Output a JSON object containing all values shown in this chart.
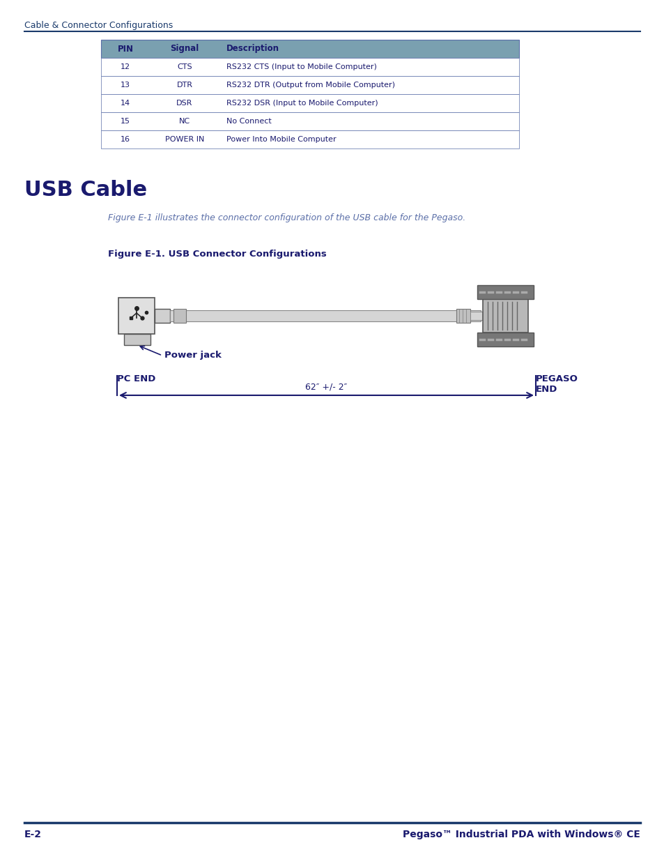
{
  "page_header": "Cable & Connector Configurations",
  "header_color": "#1a3a6b",
  "table_header_bg": "#7aa0b0",
  "table_header_text_color": "#1a1a6e",
  "table_text_color": "#1a1a6e",
  "table_cols": [
    "PIN",
    "Signal",
    "Description"
  ],
  "table_rows": [
    [
      "12",
      "CTS",
      "RS232 CTS (Input to Mobile Computer)"
    ],
    [
      "13",
      "DTR",
      "RS232 DTR (Output from Mobile Computer)"
    ],
    [
      "14",
      "DSR",
      "RS232 DSR (Input to Mobile Computer)"
    ],
    [
      "15",
      "NC",
      "No Connect"
    ],
    [
      "16",
      "POWER IN",
      "Power Into Mobile Computer"
    ]
  ],
  "section_title": "USB Cable",
  "section_title_color": "#1a1a6e",
  "body_text": "Figure E-1 illustrates the connector configuration of the USB cable for the Pegaso.",
  "body_text_color": "#5b6fa8",
  "figure_label": "Figure E-1. USB Connector Configurations",
  "figure_label_color": "#1a1a6e",
  "pc_end_label": "PC END",
  "pegaso_end_label": "PEGASO\nEND",
  "power_jack_label": "Power jack",
  "dimension_label": "62″ +/- 2″",
  "label_color": "#1a1a6e",
  "footer_left": "E-2",
  "footer_right": "Pegaso™ Industrial PDA with Windows® CE",
  "footer_color": "#1a1a6e",
  "bg_color": "#ffffff",
  "line_color": "#1a3a6b",
  "table_border_color": "#5b6fa8"
}
